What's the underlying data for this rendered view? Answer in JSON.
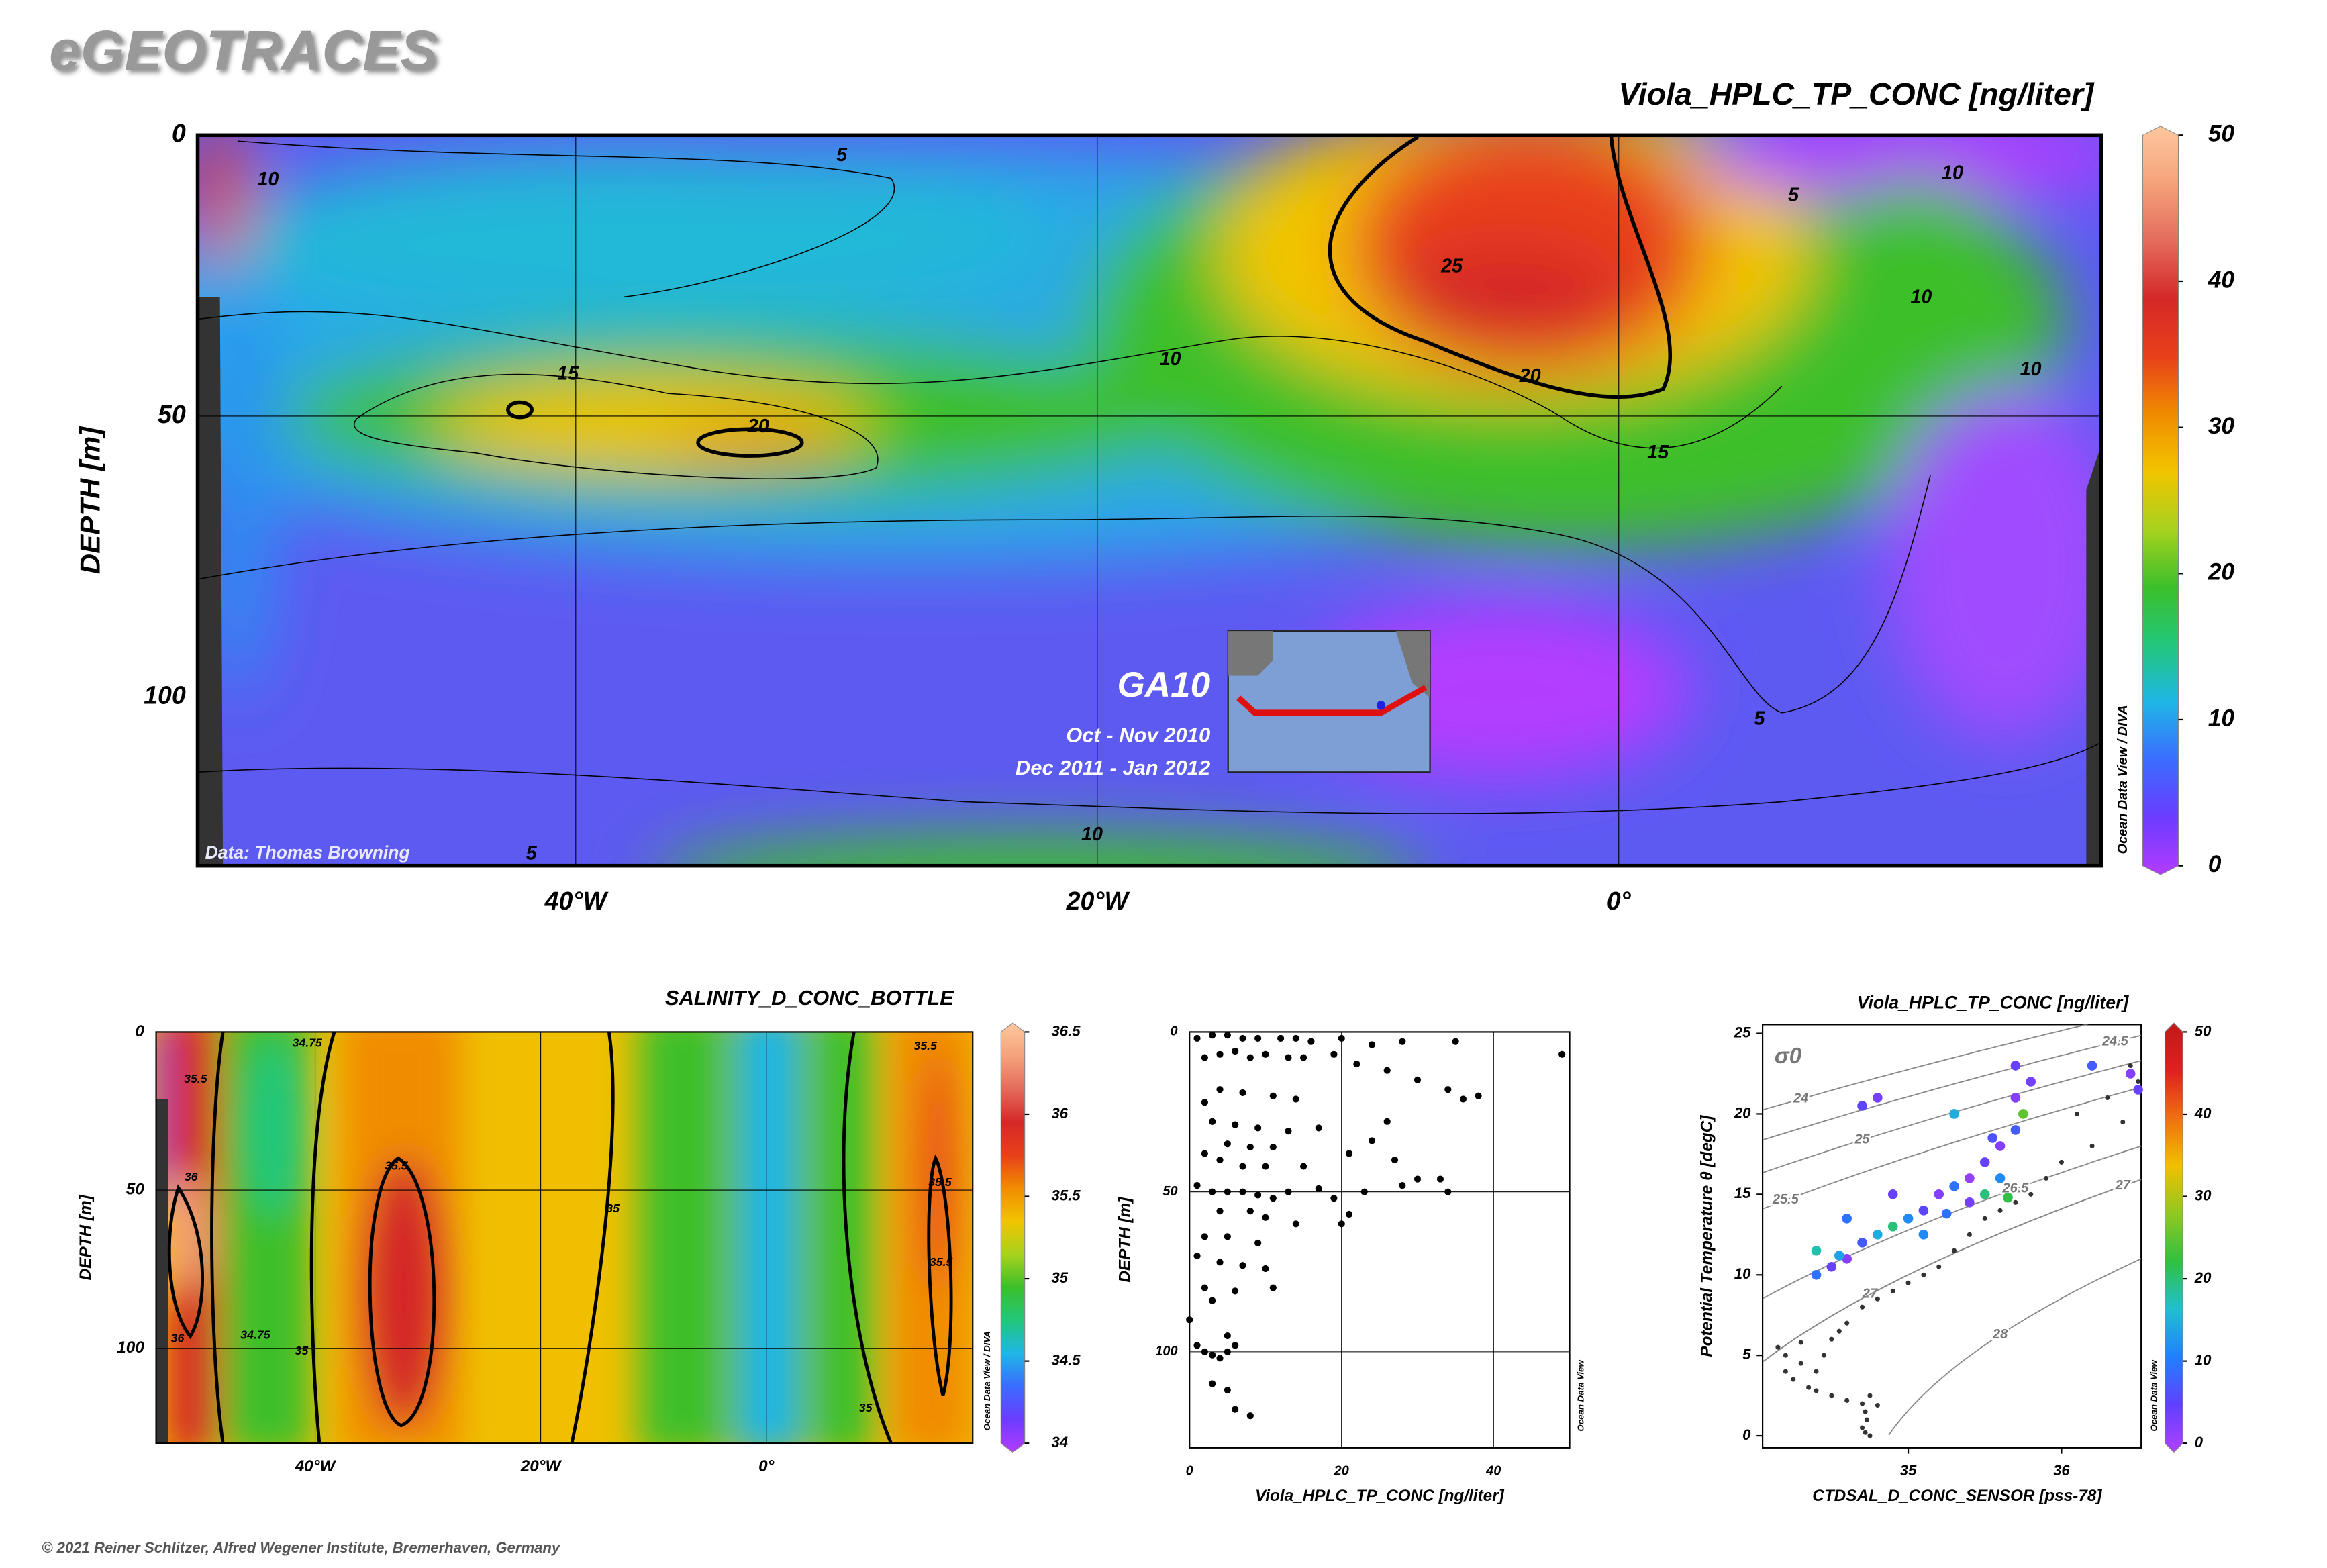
{
  "header": {
    "title": "eGEOTRACES"
  },
  "footer": "© 2021 Reiner Schlitzer, Alfred Wegener Institute, Bremerhaven, Germany",
  "chart_data": [
    {
      "type": "section",
      "title": "Viola_HPLC_TP_CONC [ng/liter]",
      "ylabel": "DEPTH [m]",
      "xlim": [
        -54.5,
        18.5
      ],
      "xticks": [
        {
          "value": -40,
          "label": "40°W"
        },
        {
          "value": -20,
          "label": "20°W"
        },
        {
          "value": 0,
          "label": "0°"
        }
      ],
      "ylim": [
        0,
        130
      ],
      "yticks": [
        0,
        50,
        100
      ],
      "y_inverted": true,
      "grid": true,
      "colorbar": {
        "zlim": [
          0,
          50
        ],
        "zticks": [
          0,
          10,
          20,
          30,
          40,
          50
        ]
      },
      "colormap": [
        "#b33cff",
        "#6b3cff",
        "#3a6dff",
        "#1fb6e6",
        "#22c77a",
        "#3cbf2a",
        "#a8d21e",
        "#f2c400",
        "#f08c00",
        "#e8401a",
        "#d42828",
        "#e46b5c",
        "#f4a27a",
        "#ffc79e"
      ],
      "contour_labels": [
        {
          "value": 5,
          "lon": -29.8,
          "depth": 3.7
        },
        {
          "value": 10,
          "lon": -51.8,
          "depth": 8
        },
        {
          "value": 15,
          "lon": -40.3,
          "depth": 42.6
        },
        {
          "value": 20,
          "lon": -33,
          "depth": 52
        },
        {
          "value": 10,
          "lon": -17.2,
          "depth": 40
        },
        {
          "value": 25,
          "lon": -6.4,
          "depth": 23.5
        },
        {
          "value": 20,
          "lon": -3.4,
          "depth": 43
        },
        {
          "value": 15,
          "lon": 1.5,
          "depth": 56.6
        },
        {
          "value": 5,
          "lon": 6.7,
          "depth": 10.8
        },
        {
          "value": 10,
          "lon": 12.8,
          "depth": 6.9
        },
        {
          "value": 10,
          "lon": 11.6,
          "depth": 29
        },
        {
          "value": 10,
          "lon": 15.8,
          "depth": 41.8
        },
        {
          "value": 5,
          "lon": 5.4,
          "depth": 104
        },
        {
          "value": 10,
          "lon": -20.2,
          "depth": 124.6
        },
        {
          "value": 5,
          "lon": -41.7,
          "depth": 128
        }
      ],
      "annotations": {
        "station": "GA10",
        "cruise_dates": [
          "Oct - Nov 2010",
          "Dec 2011 - Jan 2012"
        ],
        "data_credit": "Data: Thomas Browning",
        "software": "Ocean Data View / DIVA"
      }
    },
    {
      "type": "section",
      "title": "SALINITY_D_CONC_BOTTLE",
      "ylabel": "DEPTH [m]",
      "xlim": [
        -54.1,
        18.3
      ],
      "xticks": [
        {
          "value": -40,
          "label": "40°W"
        },
        {
          "value": -20,
          "label": "20°W"
        },
        {
          "value": 0,
          "label": "0°"
        }
      ],
      "ylim": [
        0,
        130
      ],
      "yticks": [
        0,
        50,
        100
      ],
      "y_inverted": true,
      "grid": true,
      "colorbar": {
        "zlim": [
          34,
          36.5
        ],
        "zticks": [
          34,
          34.5,
          35,
          35.5,
          36,
          36.5
        ]
      },
      "colormap": [
        "#b33cff",
        "#6b3cff",
        "#3a6dff",
        "#1fb6e6",
        "#22c77a",
        "#3cbf2a",
        "#a8d21e",
        "#f2c400",
        "#f08c00",
        "#e8401a",
        "#d42828",
        "#e46b5c",
        "#f4a27a",
        "#ffc79e"
      ],
      "contour_labels": [
        {
          "value": 35.5,
          "lon": -32.8,
          "depth": 42.5
        },
        {
          "value": 35.5,
          "lon": -50.6,
          "depth": 15
        },
        {
          "value": 36,
          "lon": -51,
          "depth": 46
        },
        {
          "value": 36,
          "lon": -52.2,
          "depth": 97
        },
        {
          "value": 34.75,
          "lon": -45.3,
          "depth": 96
        },
        {
          "value": 35,
          "lon": -41.2,
          "depth": 101
        },
        {
          "value": 35,
          "lon": -13.6,
          "depth": 56
        },
        {
          "value": 35,
          "lon": 8.8,
          "depth": 119
        },
        {
          "value": 35.5,
          "lon": 14.1,
          "depth": 4.7
        },
        {
          "value": 35.5,
          "lon": 15.4,
          "depth": 47.7
        },
        {
          "value": 35.5,
          "lon": 15.5,
          "depth": 73
        },
        {
          "value": 34.75,
          "lon": -40.7,
          "depth": 3.7
        }
      ],
      "annotations": {
        "software": "Ocean Data View / DIVA"
      }
    },
    {
      "type": "scatter",
      "xlabel": "Viola_HPLC_TP_CONC [ng/liter]",
      "ylabel": "DEPTH [m]",
      "xlim": [
        0,
        50
      ],
      "xticks": [
        0,
        20,
        40
      ],
      "ylim": [
        0,
        130
      ],
      "yticks": [
        0,
        50,
        100
      ],
      "y_inverted": true,
      "grid": true,
      "color": "#000000",
      "x": [
        1,
        3,
        5,
        7,
        9,
        12,
        14,
        16,
        20,
        24,
        28,
        35,
        49,
        2,
        4,
        6,
        8,
        10,
        13,
        15,
        19,
        22,
        26,
        30,
        34,
        36,
        38,
        4,
        7,
        11,
        14,
        2,
        3,
        6,
        9,
        13,
        17,
        26,
        24,
        5,
        8,
        11,
        2,
        4,
        7,
        10,
        15,
        21,
        27,
        30,
        33,
        28,
        1,
        3,
        5,
        7,
        9,
        11,
        13,
        17,
        19,
        23,
        34,
        4,
        8,
        10,
        14,
        21,
        20,
        2,
        5,
        9,
        1,
        4,
        7,
        10,
        2,
        6,
        11,
        3,
        0,
        5,
        1,
        2,
        3,
        4,
        5,
        6,
        3,
        5,
        6,
        8
      ],
      "y": [
        2,
        1,
        1,
        2,
        2,
        2,
        2,
        3,
        2,
        4,
        3,
        3,
        7,
        8,
        7,
        6,
        8,
        7,
        8,
        8,
        7,
        10,
        12,
        15,
        18,
        21,
        20,
        18,
        19,
        20,
        21,
        22,
        28,
        29,
        30,
        31,
        30,
        28,
        34,
        35,
        36,
        36,
        38,
        40,
        42,
        42,
        42,
        38,
        40,
        46,
        46,
        48,
        48,
        50,
        50,
        50,
        51,
        52,
        50,
        49,
        52,
        50,
        50,
        56,
        56,
        58,
        60,
        57,
        60,
        64,
        64,
        66,
        70,
        72,
        73,
        74,
        80,
        81,
        80,
        84,
        90,
        95,
        98,
        100,
        101,
        102,
        100,
        98,
        110,
        112,
        118,
        120
      ],
      "annotations": {
        "software": "Ocean Data View"
      }
    },
    {
      "type": "ts_scatter",
      "title": "Viola_HPLC_TP_CONC [ng/liter]",
      "xlabel": "CTDSAL_D_CONC_SENSOR [pss-78]",
      "ylabel": "Potential Temperature θ [degC]",
      "xlim": [
        34.05,
        36.52
      ],
      "xticks": [
        35,
        36
      ],
      "ylim": [
        -0.74,
        25.55
      ],
      "yticks": [
        0,
        5,
        10,
        15,
        20,
        25
      ],
      "density_label": "σ0",
      "isopycnals": [
        {
          "value": 24,
          "s": 34.3
        },
        {
          "value": 24.5,
          "s": 36.35
        },
        {
          "value": 25,
          "s": 34.7
        },
        {
          "value": 25.5,
          "s": 34.2
        },
        {
          "value": 26.5,
          "s": 35.7
        },
        {
          "value": 27,
          "s": 34.75
        },
        {
          "value": 27,
          "s": 36.4
        },
        {
          "value": 28,
          "s": 35.6
        }
      ],
      "colorbar": {
        "zlim": [
          0,
          50
        ],
        "zticks": [
          0,
          10,
          20,
          30,
          40,
          50
        ]
      },
      "colormap": [
        "#b040ff",
        "#6040ff",
        "#2080ff",
        "#20c0d0",
        "#30c040",
        "#90c820",
        "#f0c000",
        "#f07010",
        "#e02020",
        "#c01818"
      ],
      "background_points": {
        "color": "#333333",
        "x": [
          34.3,
          34.2,
          34.25,
          34.35,
          34.4,
          34.5,
          34.6,
          34.7,
          34.75,
          34.8,
          34.72,
          34.73,
          34.7,
          34.72,
          34.75,
          34.4,
          34.45,
          34.5,
          34.55,
          34.6,
          34.7,
          34.8,
          34.9,
          35,
          35.1,
          35.2,
          35.3,
          35.4,
          35.5,
          35.6,
          35.7,
          35.8,
          35.9,
          36,
          36.2,
          36.4,
          36.1,
          36.3,
          34.2,
          34.15,
          34.3,
          36.5,
          36.45
        ],
        "y": [
          4.5,
          4,
          3.5,
          3,
          2.8,
          2.5,
          2.2,
          2,
          2.5,
          1.9,
          1.5,
          1,
          0.5,
          0.2,
          0,
          4,
          5,
          6,
          6.5,
          7,
          8,
          8.5,
          9,
          9.5,
          10,
          10.5,
          11.5,
          12.5,
          13.5,
          14,
          14.5,
          15,
          16,
          17,
          18,
          19.5,
          20,
          21,
          5,
          5.5,
          5.8,
          22,
          23
        ]
      },
      "points": {
        "x": [
          34.4,
          34.5,
          34.6,
          34.7,
          34.8,
          34.9,
          35,
          35.1,
          35.2,
          35.3,
          35.4,
          35.5,
          35.6,
          35.7,
          35.75,
          35.7,
          35.8,
          35.7,
          35.3,
          34.9,
          34.6,
          34.4,
          35.5,
          35.6,
          35.4,
          36.45,
          36.5,
          34.8,
          34.7,
          36.2,
          35.65,
          35.1,
          35.25,
          34.55,
          35.55
        ],
        "y": [
          10,
          10.5,
          11,
          12,
          12.5,
          13,
          13.5,
          14,
          15,
          15.5,
          16,
          17,
          18,
          19,
          20,
          21,
          22,
          23,
          20,
          15,
          13.5,
          11.5,
          15,
          16,
          14.5,
          22.5,
          21.5,
          21,
          20.5,
          23,
          14.8,
          12.5,
          13.8,
          11.2,
          18.5
        ],
        "z": [
          10,
          5,
          3,
          8,
          15,
          20,
          12,
          6,
          3,
          10,
          2,
          5,
          3,
          8,
          25,
          3,
          4,
          5,
          15,
          5,
          10,
          18,
          20,
          12,
          4,
          3,
          5,
          4,
          6,
          8,
          22,
          12,
          10,
          14,
          7
        ]
      },
      "annotations": {
        "software": "Ocean Data View"
      }
    }
  ]
}
